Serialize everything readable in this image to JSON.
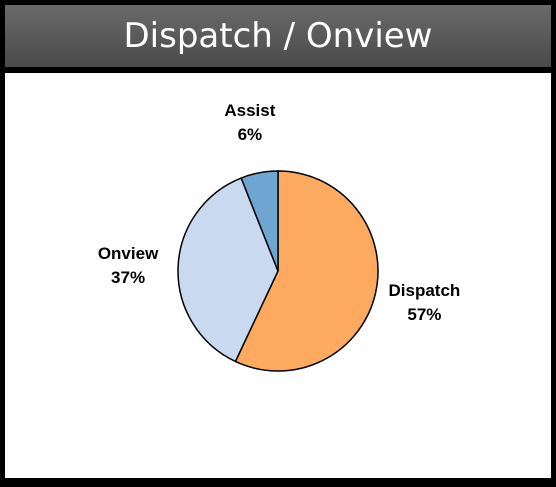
{
  "title": "Dispatch / Onview",
  "chart_data": {
    "type": "pie",
    "categories": [
      "Dispatch",
      "Onview",
      "Assist"
    ],
    "values": [
      57,
      37,
      6
    ],
    "value_labels": [
      "57%",
      "37%",
      "6%"
    ],
    "colors": [
      "#fda95f",
      "#c9d9ef",
      "#6fa6d1"
    ]
  }
}
